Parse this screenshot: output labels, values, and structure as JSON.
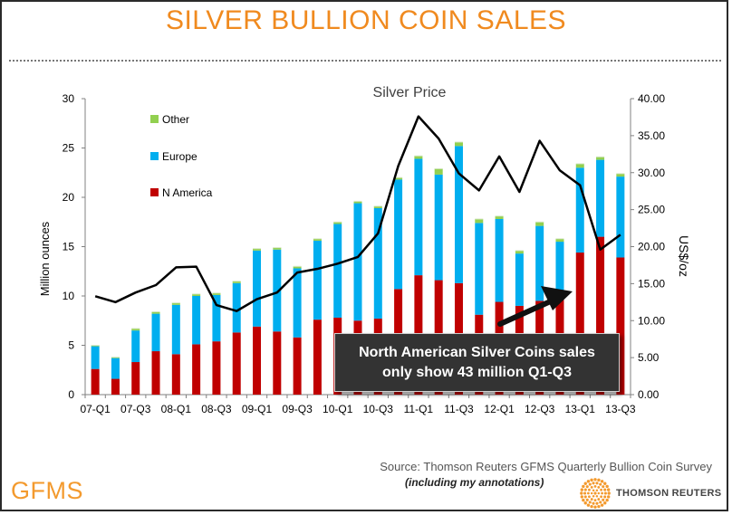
{
  "title": "SILVER BULLION COIN SALES",
  "footer": {
    "source": "Source: Thomson Reuters GFMS Quarterly Bullion Coin Survey",
    "note": "(including my annotations)",
    "gfms_logo": "GFMS",
    "tr_logo": "THOMSON REUTERS"
  },
  "callout": {
    "line1": "North American Silver Coins sales",
    "line2": "only show 43 million Q1-Q3"
  },
  "colors": {
    "title": "#f08a1f",
    "n_america": "#c00000",
    "europe": "#00aeef",
    "other": "#92d050",
    "price_line": "#000000"
  },
  "chart_data": {
    "type": "bar",
    "stacked": true,
    "title": "Silver Price",
    "ylabel": "Million ounces",
    "y2label": "US$/oz",
    "ylim": [
      0,
      30
    ],
    "y2lim": [
      0,
      40
    ],
    "yticks": [
      "0",
      "5",
      "10",
      "15",
      "20",
      "25",
      "30"
    ],
    "y2ticks": [
      "0.00",
      "5.00",
      "10.00",
      "15.00",
      "20.00",
      "25.00",
      "30.00",
      "35.00",
      "40.00"
    ],
    "categories": [
      "07-Q1",
      "07-Q2",
      "07-Q3",
      "07-Q4",
      "08-Q1",
      "08-Q2",
      "08-Q3",
      "08-Q4",
      "09-Q1",
      "09-Q2",
      "09-Q3",
      "09-Q4",
      "10-Q1",
      "10-Q2",
      "10-Q3",
      "10-Q4",
      "11-Q1",
      "11-Q2",
      "11-Q3",
      "11-Q4",
      "12-Q1",
      "12-Q2",
      "12-Q3",
      "12-Q4",
      "13-Q1",
      "13-Q2",
      "13-Q3"
    ],
    "x_tick_labels": [
      "07-Q1",
      "07-Q3",
      "08-Q1",
      "08-Q3",
      "09-Q1",
      "09-Q3",
      "10-Q1",
      "10-Q3",
      "11-Q1",
      "11-Q3",
      "12-Q1",
      "12-Q3",
      "13-Q1",
      "13-Q3"
    ],
    "legend": [
      "Other",
      "Europe",
      "N America"
    ],
    "legend_position": "top-left",
    "series": [
      {
        "name": "N America",
        "values": [
          2.6,
          1.6,
          3.3,
          4.4,
          4.1,
          5.1,
          5.4,
          6.3,
          6.9,
          6.4,
          5.8,
          7.6,
          7.8,
          7.5,
          7.7,
          10.7,
          12.1,
          11.6,
          11.3,
          8.1,
          9.4,
          9.0,
          9.5,
          9.9,
          14.4,
          16.0,
          13.9
        ]
      },
      {
        "name": "Europe",
        "values": [
          2.3,
          2.1,
          3.2,
          3.8,
          5.0,
          4.9,
          4.7,
          5.0,
          7.7,
          8.3,
          7.0,
          8.0,
          9.5,
          11.9,
          11.2,
          11.1,
          11.8,
          10.7,
          13.9,
          9.3,
          8.4,
          5.3,
          7.6,
          5.6,
          8.6,
          7.8,
          8.2
        ]
      },
      {
        "name": "Other",
        "values": [
          0.1,
          0.1,
          0.2,
          0.2,
          0.2,
          0.2,
          0.2,
          0.2,
          0.2,
          0.2,
          0.2,
          0.2,
          0.2,
          0.2,
          0.2,
          0.2,
          0.3,
          0.6,
          0.4,
          0.4,
          0.3,
          0.3,
          0.4,
          0.3,
          0.4,
          0.3,
          0.3
        ]
      }
    ],
    "price_line": {
      "name": "Silver Price",
      "axis": "right",
      "values": [
        13.3,
        12.5,
        13.8,
        14.8,
        17.2,
        17.3,
        12.1,
        11.3,
        12.9,
        13.8,
        16.5,
        17.0,
        17.7,
        18.6,
        21.8,
        30.9,
        37.6,
        34.6,
        29.9,
        27.6,
        32.2,
        27.4,
        34.3,
        30.3,
        28.3,
        19.6,
        21.6
      ]
    }
  }
}
